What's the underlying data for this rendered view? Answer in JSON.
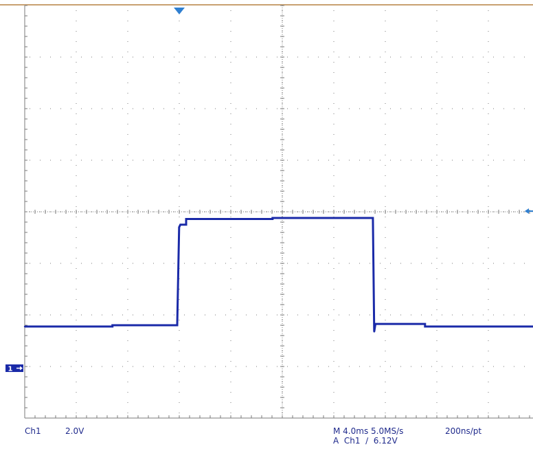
{
  "scope": {
    "background": "#ffffff",
    "graticule_color": "#7a7a7a",
    "trace_color": "#1a2aa8",
    "trigger_color": "#2f7fd0",
    "top_border_color": "#c8a070",
    "divisions": {
      "horizontal": 10,
      "vertical": 8
    }
  },
  "trigger_position_marker": {
    "icon": "triangle-down-icon"
  },
  "trigger_level_marker": {
    "icon": "arrow-left-icon"
  },
  "channel_marker": {
    "label": "1",
    "icon": "arrow-right-icon"
  },
  "readouts": {
    "channel": "Ch1",
    "volts_per_div": "2.0V",
    "timebase": "M 4.0ms 5.0MS/s",
    "trigger": "A  Ch1  ∕  6.12V",
    "record": "200ns/pt"
  },
  "chart_data": {
    "type": "line",
    "title": "",
    "xlabel": "",
    "ylabel": "",
    "x_unit": "ms",
    "y_unit": "V",
    "xlim": [
      -12,
      28
    ],
    "ylim": [
      -2,
      14
    ],
    "grid": true,
    "series": [
      {
        "points": [
          [
            -12.0,
            1.55
          ],
          [
            -5.1,
            1.55
          ],
          [
            -5.1,
            1.6
          ],
          [
            0.0,
            1.6
          ],
          [
            0.15,
            5.4
          ],
          [
            0.25,
            5.5
          ],
          [
            0.7,
            5.5
          ],
          [
            0.7,
            5.72
          ],
          [
            7.5,
            5.72
          ],
          [
            7.5,
            5.76
          ],
          [
            15.4,
            5.76
          ],
          [
            15.5,
            1.35
          ],
          [
            15.6,
            1.65
          ],
          [
            19.5,
            1.65
          ],
          [
            19.5,
            1.55
          ],
          [
            28.0,
            1.55
          ]
        ]
      }
    ]
  }
}
